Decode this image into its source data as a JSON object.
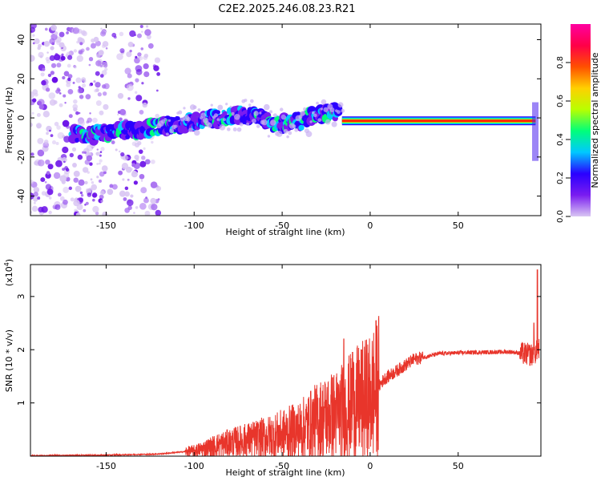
{
  "title": "C2E2.2025.246.08.23.R21",
  "chart_data": [
    {
      "type": "heatmap",
      "xlabel": "Height of straight line (km)",
      "ylabel": "Frequency (Hz)",
      "xlim": [
        -193,
        97
      ],
      "ylim": [
        -50,
        48
      ],
      "xticks": [
        -150,
        -100,
        -50,
        0,
        50
      ],
      "yticks": [
        -40,
        -20,
        0,
        20,
        40
      ],
      "colorbar": {
        "label": "Normalized spectral amplitude",
        "ticks": [
          "0.0",
          "0.2",
          "0.4",
          "0.6",
          "0.8"
        ],
        "range": [
          0,
          1
        ],
        "colormap": [
          "#d9c6f3",
          "#7a1cf0",
          "#2a00ff",
          "#00c8ff",
          "#00ff7a",
          "#b8ff00",
          "#ffd000",
          "#ff5000",
          "#ff0048",
          "#ff00a0"
        ]
      },
      "ridge": [
        {
          "x": -170,
          "y": -9
        },
        {
          "x": -150,
          "y": -8
        },
        {
          "x": -130,
          "y": -6
        },
        {
          "x": -115,
          "y": -4
        },
        {
          "x": -100,
          "y": -2
        },
        {
          "x": -85,
          "y": 0
        },
        {
          "x": -70,
          "y": 2
        },
        {
          "x": -55,
          "y": -3
        },
        {
          "x": -40,
          "y": -2
        },
        {
          "x": -25,
          "y": 3
        },
        {
          "x": -18,
          "y": 3
        },
        {
          "x": -15,
          "y": 0
        },
        {
          "x": 0,
          "y": -1
        },
        {
          "x": 10,
          "y": -1.5
        },
        {
          "x": 50,
          "y": -1.5
        },
        {
          "x": 94,
          "y": -1.5
        }
      ]
    },
    {
      "type": "line",
      "xlabel": "Height of straight line (km)",
      "ylabel": "SNR (10 * v/v)",
      "scale_label": "(x10",
      "scale_exp": "4",
      "scale_close": ")",
      "xlim": [
        -193,
        97
      ],
      "ylim": [
        0,
        3.6
      ],
      "xticks": [
        -150,
        -100,
        -50,
        0,
        50
      ],
      "yticks": [
        1,
        2,
        3
      ],
      "color": "#e8352b",
      "envelope": [
        {
          "x": -193,
          "y": 0.01
        },
        {
          "x": -150,
          "y": 0.02
        },
        {
          "x": -120,
          "y": 0.04
        },
        {
          "x": -100,
          "y": 0.1
        },
        {
          "x": -85,
          "y": 0.22
        },
        {
          "x": -70,
          "y": 0.3
        },
        {
          "x": -55,
          "y": 0.38
        },
        {
          "x": -40,
          "y": 0.5
        },
        {
          "x": -28,
          "y": 0.7
        },
        {
          "x": -18,
          "y": 0.8
        },
        {
          "x": -10,
          "y": 0.95
        },
        {
          "x": 0,
          "y": 1.1
        },
        {
          "x": 8,
          "y": 1.45
        },
        {
          "x": 15,
          "y": 1.6
        },
        {
          "x": 25,
          "y": 1.82
        },
        {
          "x": 40,
          "y": 1.93
        },
        {
          "x": 60,
          "y": 1.95
        },
        {
          "x": 80,
          "y": 1.96
        },
        {
          "x": 92,
          "y": 1.9
        },
        {
          "x": 96,
          "y": 2.0
        }
      ],
      "peaks": [
        {
          "x": -15,
          "y": 2.2
        },
        {
          "x": -10,
          "y": 1.95
        },
        {
          "x": 93,
          "y": 2.5
        },
        {
          "x": 95,
          "y": 3.5
        }
      ]
    }
  ]
}
